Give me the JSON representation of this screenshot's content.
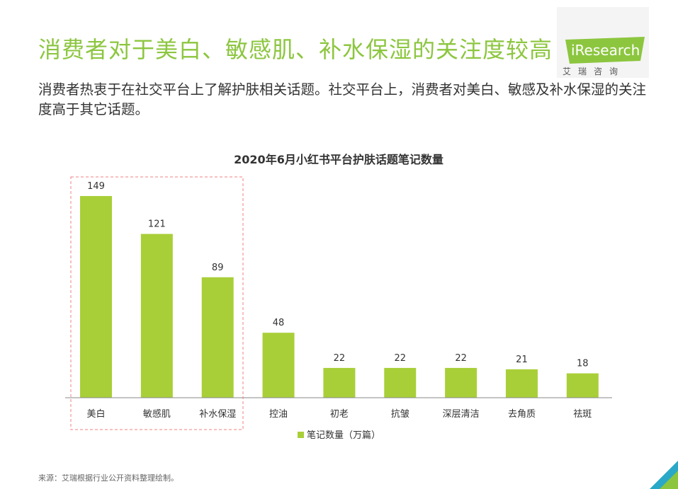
{
  "page": {
    "headline": "消费者对于美白、敏感肌、补水保湿的关注度较高",
    "subtitle": "消费者热衷于在社交平台上了解护肤相关话题。社交平台上，消费者对美白、敏感及补水保湿的关注度高于其它话题。",
    "source": "来源：艾瑞根据行业公开资料整理绘制。"
  },
  "logo": {
    "brand": "iResearch",
    "tagline": "艾瑞咨询"
  },
  "colors": {
    "accent": "#8cc63f",
    "bar": "#a9cf38",
    "highlight_border": "#f08080"
  },
  "chart_data": {
    "type": "bar",
    "title": "2020年6月小红书平台护肤话题笔记数量",
    "categories": [
      "美白",
      "敏感肌",
      "补水保湿",
      "控油",
      "初老",
      "抗皱",
      "深层清洁",
      "去角质",
      "祛斑"
    ],
    "series": [
      {
        "name": "笔记数量（万篇）",
        "values": [
          149,
          121,
          89,
          48,
          22,
          22,
          22,
          21,
          18
        ]
      }
    ],
    "ylim": [
      0,
      160
    ],
    "grid": false,
    "legend_position": "bottom",
    "highlighted_categories": [
      "美白",
      "敏感肌",
      "补水保湿"
    ]
  }
}
